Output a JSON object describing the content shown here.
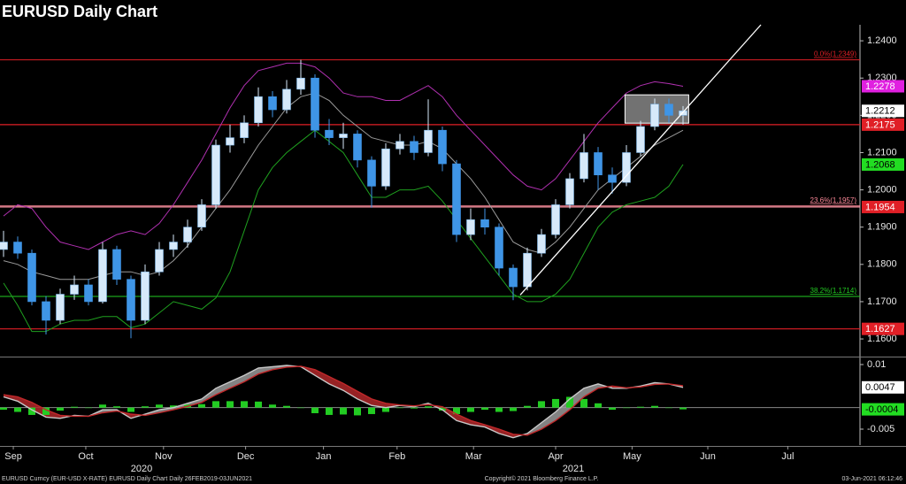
{
  "header": {
    "title": "EURUSD Daily Chart"
  },
  "chart_data": [
    {
      "type": "candlestick",
      "up_color": "#d6e9fa",
      "down_color": "#3f95e6",
      "ohlc": [
        [
          1.184,
          1.189,
          1.182,
          1.186
        ],
        [
          1.186,
          1.1875,
          1.1815,
          1.183
        ],
        [
          1.183,
          1.184,
          1.169,
          1.17
        ],
        [
          1.17,
          1.1715,
          1.1612,
          1.165
        ],
        [
          1.165,
          1.1735,
          1.164,
          1.172
        ],
        [
          1.172,
          1.177,
          1.1705,
          1.1745
        ],
        [
          1.1745,
          1.176,
          1.169,
          1.17
        ],
        [
          1.17,
          1.186,
          1.1695,
          1.184
        ],
        [
          1.184,
          1.185,
          1.1745,
          1.176
        ],
        [
          1.176,
          1.177,
          1.1602,
          1.165
        ],
        [
          1.165,
          1.18,
          1.164,
          1.178
        ],
        [
          1.178,
          1.186,
          1.177,
          1.184
        ],
        [
          1.184,
          1.188,
          1.182,
          1.186
        ],
        [
          1.186,
          1.192,
          1.1845,
          1.19
        ],
        [
          1.19,
          1.1975,
          1.189,
          1.196
        ],
        [
          1.196,
          1.2135,
          1.195,
          1.212
        ],
        [
          1.212,
          1.2175,
          1.21,
          1.214
        ],
        [
          1.214,
          1.22,
          1.2125,
          1.218
        ],
        [
          1.218,
          1.2275,
          1.217,
          1.225
        ],
        [
          1.225,
          1.2265,
          1.2195,
          1.2215
        ],
        [
          1.2215,
          1.2295,
          1.2205,
          1.227
        ],
        [
          1.227,
          1.2349,
          1.2255,
          1.23
        ],
        [
          1.23,
          1.231,
          1.214,
          1.216
        ],
        [
          1.216,
          1.219,
          1.212,
          1.214
        ],
        [
          1.214,
          1.218,
          1.211,
          1.215
        ],
        [
          1.215,
          1.216,
          1.206,
          1.208
        ],
        [
          1.208,
          1.209,
          1.1952,
          1.201
        ],
        [
          1.201,
          1.2125,
          1.2,
          1.211
        ],
        [
          1.211,
          1.215,
          1.2095,
          1.213
        ],
        [
          1.213,
          1.2145,
          1.208,
          1.21
        ],
        [
          1.21,
          1.2243,
          1.209,
          1.216
        ],
        [
          1.216,
          1.217,
          1.205,
          1.207
        ],
        [
          1.207,
          1.208,
          1.186,
          1.188
        ],
        [
          1.188,
          1.195,
          1.1865,
          1.192
        ],
        [
          1.192,
          1.195,
          1.188,
          1.19
        ],
        [
          1.19,
          1.191,
          1.177,
          1.179
        ],
        [
          1.179,
          1.18,
          1.1704,
          1.174
        ],
        [
          1.174,
          1.1845,
          1.173,
          1.183
        ],
        [
          1.183,
          1.1895,
          1.182,
          1.188
        ],
        [
          1.188,
          1.1975,
          1.187,
          1.196
        ],
        [
          1.196,
          1.2045,
          1.195,
          1.203
        ],
        [
          1.203,
          1.215,
          1.202,
          1.21
        ],
        [
          1.21,
          1.2115,
          1.2,
          1.204
        ],
        [
          1.204,
          1.206,
          1.199,
          1.202
        ],
        [
          1.202,
          1.212,
          1.201,
          1.21
        ],
        [
          1.21,
          1.2185,
          1.209,
          1.217
        ],
        [
          1.217,
          1.2245,
          1.216,
          1.223
        ],
        [
          1.223,
          1.2245,
          1.218,
          1.22
        ],
        [
          1.22,
          1.2225,
          1.2175,
          1.2212
        ]
      ],
      "series": [
        {
          "color": "#9a9a9a",
          "values": [
            1.181,
            1.18,
            1.178,
            1.177,
            1.176,
            1.176,
            1.176,
            1.177,
            1.178,
            1.178,
            1.177,
            1.178,
            1.181,
            1.185,
            1.19,
            1.195,
            1.2,
            1.206,
            1.212,
            1.217,
            1.222,
            1.225,
            1.226,
            1.224,
            1.22,
            1.217,
            1.214,
            1.213,
            1.212,
            1.212,
            1.213,
            1.211,
            1.207,
            1.203,
            1.198,
            1.192,
            1.186,
            1.184,
            1.183,
            1.186,
            1.19,
            1.195,
            1.2,
            1.203,
            1.206,
            1.209,
            1.212,
            1.214,
            1.216
          ]
        },
        {
          "color": "#b030b0",
          "values": [
            1.193,
            1.196,
            1.195,
            1.19,
            1.186,
            1.185,
            1.184,
            1.186,
            1.188,
            1.189,
            1.188,
            1.191,
            1.196,
            1.202,
            1.208,
            1.215,
            1.222,
            1.228,
            1.232,
            1.233,
            1.234,
            1.234,
            1.233,
            1.23,
            1.226,
            1.225,
            1.225,
            1.224,
            1.224,
            1.226,
            1.228,
            1.225,
            1.22,
            1.216,
            1.212,
            1.208,
            1.204,
            1.201,
            1.2,
            1.203,
            1.208,
            1.213,
            1.218,
            1.222,
            1.226,
            1.228,
            1.229,
            1.2285,
            1.2278
          ]
        },
        {
          "color": "#1fa01f",
          "values": [
            1.175,
            1.169,
            1.162,
            1.162,
            1.164,
            1.165,
            1.165,
            1.166,
            1.166,
            1.163,
            1.164,
            1.167,
            1.17,
            1.169,
            1.168,
            1.171,
            1.178,
            1.189,
            1.2,
            1.206,
            1.21,
            1.213,
            1.216,
            1.213,
            1.21,
            1.204,
            1.198,
            1.198,
            1.2,
            1.2,
            1.201,
            1.197,
            1.192,
            1.187,
            1.182,
            1.177,
            1.172,
            1.17,
            1.17,
            1.172,
            1.176,
            1.183,
            1.19,
            1.194,
            1.196,
            1.197,
            1.198,
            1.201,
            1.2068
          ]
        }
      ],
      "hlines": [
        {
          "value": 1.2175,
          "color": "#e01f26"
        },
        {
          "value": 1.1954,
          "color": "#ff9aa8"
        },
        {
          "value": 1.1627,
          "color": "#e01f26"
        }
      ],
      "fib_levels": [
        {
          "value": 1.2349,
          "label": "0.0%(1.2349)",
          "color": "#e01f26"
        },
        {
          "value": 1.1957,
          "label": "23.6%(1.1957)",
          "color": "#ff8a9a"
        },
        {
          "value": 1.1714,
          "label": "38.2%(1.1714)",
          "color": "#22cc22"
        }
      ],
      "price_tags": [
        {
          "value": 1.2278,
          "color": "#e020e0",
          "text_color": "#ffffff"
        },
        {
          "value": 1.2212,
          "color": "#ffffff",
          "text_color": "#000000"
        },
        {
          "value": 1.2175,
          "color": "#e01f26",
          "text_color": "#ffffff"
        },
        {
          "value": 1.2068,
          "color": "#22dd22",
          "text_color": "#000000"
        },
        {
          "value": 1.1954,
          "color": "#e01f26",
          "text_color": "#ffffff"
        },
        {
          "value": 1.1627,
          "color": "#e01f26",
          "text_color": "#ffffff"
        }
      ],
      "trendline": {
        "x": [
          36.5,
          53.5
        ],
        "y": [
          1.1718,
          1.2443
        ],
        "color": "#ffffff"
      },
      "box": {
        "x": [
          43.9,
          48.4
        ],
        "y": [
          1.2179,
          1.2255
        ],
        "color": "#cfcfcf"
      },
      "ylim": [
        1.1555,
        1.2443
      ],
      "yticks": [
        {
          "value": 1.24,
          "label": "1.2400"
        },
        {
          "value": 1.23,
          "label": "1.2300"
        },
        {
          "value": 1.22,
          "label": "1.2200"
        },
        {
          "value": 1.21,
          "label": "1.2100"
        },
        {
          "value": 1.2,
          "label": "1.2000"
        },
        {
          "value": 1.19,
          "label": "1.1900"
        },
        {
          "value": 1.18,
          "label": "1.1800"
        },
        {
          "value": 1.17,
          "label": "1.1700"
        },
        {
          "value": 1.16,
          "label": "1.1600"
        }
      ],
      "xlim": [
        -0.25,
        60.375
      ],
      "xticks": [
        {
          "value": 0.69,
          "label": "Sep"
        },
        {
          "value": 5.81,
          "label": "Oct"
        },
        {
          "value": 11.3,
          "label": "Nov"
        },
        {
          "value": 17.1,
          "label": "Dec"
        },
        {
          "value": 22.6,
          "label": "Jan"
        },
        {
          "value": 27.8,
          "label": "Feb"
        },
        {
          "value": 33.2,
          "label": "Mar"
        },
        {
          "value": 39,
          "label": "Apr"
        },
        {
          "value": 44.4,
          "label": "May"
        },
        {
          "value": 49.75,
          "label": "Jun"
        },
        {
          "value": 55.4,
          "label": "Jul"
        }
      ],
      "year_labels": [
        {
          "value": 9.75,
          "label": "2020"
        },
        {
          "value": 40.25,
          "label": "2021"
        }
      ]
    },
    {
      "type": "macd",
      "series": [
        {
          "color": "#c8c8c8",
          "values": [
            0.0025,
            0.0015,
            -0.0005,
            -0.0022,
            -0.0025,
            -0.0018,
            -0.002,
            -0.0005,
            -0.0005,
            -0.0025,
            -0.0015,
            -0.0005,
            0.0,
            0.001,
            0.002,
            0.0045,
            0.006,
            0.0075,
            0.0092,
            0.0095,
            0.0098,
            0.0095,
            0.0075,
            0.0055,
            0.004,
            0.002,
            0.0005,
            0.0,
            0.0005,
            0.0002,
            0.001,
            -0.0005,
            -0.003,
            -0.004,
            -0.0045,
            -0.006,
            -0.007,
            -0.006,
            -0.0035,
            -0.001,
            0.002,
            0.0045,
            0.0055,
            0.0045,
            0.0045,
            0.005,
            0.0058,
            0.0055,
            0.0047
          ]
        },
        {
          "color": "#c0282a",
          "values": [
            0.003,
            0.0025,
            0.0012,
            -0.0005,
            -0.0018,
            -0.002,
            -0.002,
            -0.0012,
            -0.0008,
            -0.0015,
            -0.0018,
            -0.0012,
            -0.0005,
            0.0003,
            0.0012,
            0.003,
            0.0045,
            0.006,
            0.0078,
            0.0088,
            0.0094,
            0.0096,
            0.0088,
            0.0072,
            0.0056,
            0.0038,
            0.002,
            0.001,
            0.0006,
            0.0004,
            0.0007,
            0.0002,
            -0.0015,
            -0.003,
            -0.004,
            -0.005,
            -0.0062,
            -0.0064,
            -0.005,
            -0.003,
            -0.0005,
            0.0025,
            0.0045,
            0.005,
            0.0046,
            0.0048,
            0.0054,
            0.0055,
            0.0051
          ]
        }
      ],
      "histogram": {
        "color": "#22cc22",
        "values": [
          -0.0005,
          -0.001,
          -0.0017,
          -0.0017,
          -0.0007,
          0.0002,
          0,
          0.0007,
          0.0003,
          -0.001,
          0.0003,
          0.0007,
          0.0005,
          0.0007,
          0.0008,
          0.0015,
          0.0015,
          0.0015,
          0.0014,
          0.0007,
          0.0004,
          -0.0001,
          -0.0013,
          -0.0017,
          -0.0016,
          -0.0018,
          -0.0015,
          -0.001,
          -0.0001,
          -0.0002,
          0.0003,
          -0.0007,
          -0.0015,
          -0.001,
          -0.0005,
          -0.001,
          -0.0008,
          0.0004,
          0.0015,
          0.002,
          0.0025,
          0.002,
          0.001,
          -0.0005,
          -0.0001,
          0.0002,
          0.0004,
          0,
          -0.0004
        ]
      },
      "price_tags": [
        {
          "value": 0.0047,
          "color": "#ffffff",
          "text_color": "#000000"
        },
        {
          "value": -0.0004,
          "color": "#22dd22",
          "text_color": "#000000"
        }
      ],
      "ylim": [
        -0.0087,
        0.01144
      ],
      "yticks": [
        0.01,
        -0.005
      ]
    }
  ],
  "footer": {
    "left": "EURUSD Curncy (EUR-USD X-RATE) EURUSD Daily Chart  Daily 26FEB2019-03JUN2021",
    "center": "Copyright© 2021 Bloomberg Finance L.P.",
    "right": "03-Jun-2021 06:12:46"
  }
}
